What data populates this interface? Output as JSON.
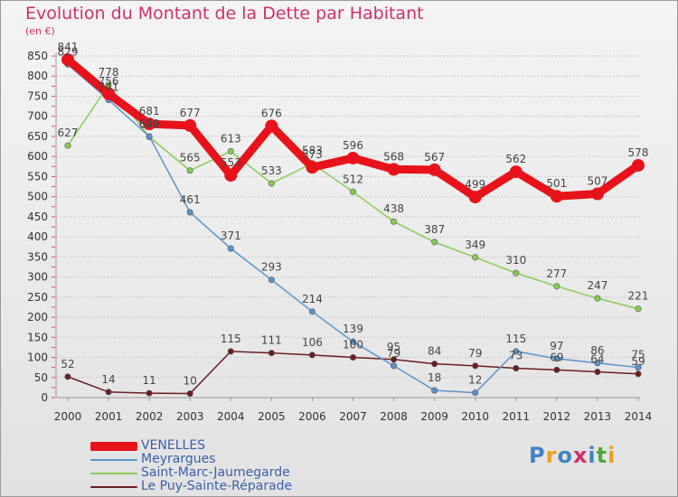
{
  "header": {
    "title": "Evolution du Montant de la Dette par Habitant",
    "unit": "(en €)"
  },
  "logo": {
    "text": "Proxiti",
    "colors": [
      "#3f83c4",
      "#e9a11e",
      "#3f83c4",
      "#d0306a",
      "#3f83c4",
      "#4fa83a",
      "#e9a11e"
    ]
  },
  "chart_data": {
    "type": "line",
    "title": "Evolution du Montant de la Dette par Habitant",
    "ylabel": "(en €)",
    "ylim": [
      0,
      850
    ],
    "yticks": [
      0,
      50,
      100,
      150,
      200,
      250,
      300,
      350,
      400,
      450,
      500,
      550,
      600,
      650,
      700,
      750,
      800,
      850
    ],
    "x": [
      "2000",
      "2001",
      "2002",
      "2003",
      "2004",
      "2005",
      "2006",
      "2007",
      "2008",
      "2009",
      "2010",
      "2011",
      "2012",
      "2013",
      "2014"
    ],
    "series": [
      {
        "name": "VENELLES",
        "color": "#e8121a",
        "values": [
          841,
          756,
          681,
          677,
          553,
          676,
          573,
          596,
          568,
          567,
          499,
          562,
          501,
          507,
          578
        ]
      },
      {
        "name": "Meyrargues",
        "color": "#5b93cc",
        "values": [
          829,
          741,
          650,
          461,
          371,
          293,
          214,
          139,
          79,
          18,
          12,
          115,
          97,
          86,
          75
        ]
      },
      {
        "name": "Saint-Marc-Jaumegarde",
        "color": "#88cc55",
        "values": [
          627,
          778,
          649,
          565,
          613,
          533,
          583,
          512,
          438,
          387,
          349,
          310,
          277,
          247,
          221
        ]
      },
      {
        "name": "Le Puy-Sainte-Réparade",
        "color": "#6b1e22",
        "values": [
          52,
          14,
          11,
          10,
          115,
          111,
          106,
          100,
          95,
          84,
          79,
          73,
          69,
          64,
          59
        ]
      }
    ]
  }
}
